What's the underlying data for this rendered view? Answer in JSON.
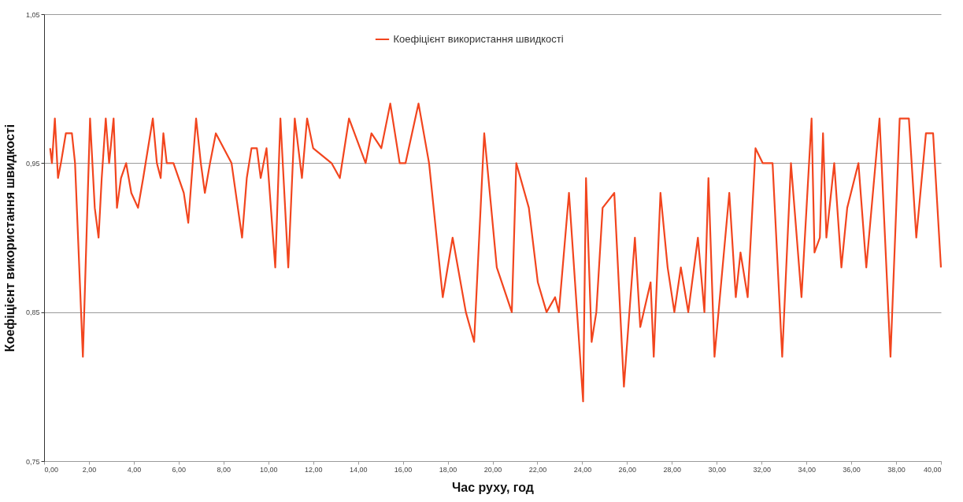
{
  "chart_data": {
    "type": "line",
    "xlabel": "Час руху, год",
    "ylabel": "Коефіцієнт використання швидкості",
    "x": [
      0.27,
      0.35,
      0.48,
      0.62,
      0.75,
      0.97,
      1.24,
      1.38,
      1.73,
      2.05,
      2.26,
      2.43,
      2.57,
      2.75,
      2.9,
      3.1,
      3.25,
      3.43,
      3.66,
      3.89,
      4.19,
      4.42,
      4.85,
      5.03,
      5.2,
      5.32,
      5.47,
      5.77,
      6.23,
      6.43,
      6.78,
      6.99,
      7.17,
      7.4,
      7.66,
      8.36,
      8.83,
      9.04,
      9.25,
      9.49,
      9.66,
      9.92,
      10.31,
      10.54,
      10.89,
      11.18,
      11.5,
      11.73,
      12.0,
      12.82,
      13.19,
      13.6,
      14.34,
      14.6,
      15.04,
      15.44,
      15.86,
      16.12,
      16.7,
      17.17,
      17.78,
      18.22,
      18.81,
      19.18,
      19.63,
      20.19,
      20.86,
      21.06,
      21.62,
      22.02,
      22.41,
      22.79,
      22.96,
      23.41,
      24.04,
      24.17,
      24.42,
      24.63,
      24.91,
      25.43,
      25.86,
      26.35,
      26.59,
      27.05,
      27.19,
      27.49,
      27.81,
      28.11,
      28.4,
      28.73,
      29.16,
      29.45,
      29.63,
      29.9,
      30.56,
      30.85,
      31.06,
      31.38,
      31.73,
      32.05,
      32.49,
      32.92,
      33.31,
      33.78,
      34.23,
      34.36,
      34.6,
      34.74,
      34.89,
      35.24,
      35.56,
      35.82,
      36.32,
      36.67,
      37.26,
      37.75,
      38.16,
      38.57,
      38.9,
      39.33,
      39.65,
      40.0
    ],
    "series": [
      {
        "name": "Коефіцієнт використання швидкості",
        "color": "#f2451e",
        "values": [
          0.96,
          0.95,
          0.98,
          0.94,
          0.95,
          0.97,
          0.97,
          0.95,
          0.82,
          0.98,
          0.92,
          0.9,
          0.94,
          0.98,
          0.95,
          0.98,
          0.92,
          0.94,
          0.95,
          0.93,
          0.92,
          0.94,
          0.98,
          0.95,
          0.94,
          0.97,
          0.95,
          0.95,
          0.93,
          0.91,
          0.98,
          0.95,
          0.93,
          0.95,
          0.97,
          0.95,
          0.9,
          0.94,
          0.96,
          0.96,
          0.94,
          0.96,
          0.88,
          0.98,
          0.88,
          0.98,
          0.94,
          0.98,
          0.96,
          0.95,
          0.94,
          0.98,
          0.95,
          0.97,
          0.96,
          0.99,
          0.95,
          0.95,
          0.99,
          0.95,
          0.86,
          0.9,
          0.85,
          0.83,
          0.97,
          0.88,
          0.85,
          0.95,
          0.92,
          0.87,
          0.85,
          0.86,
          0.85,
          0.93,
          0.79,
          0.94,
          0.83,
          0.85,
          0.92,
          0.93,
          0.8,
          0.9,
          0.84,
          0.87,
          0.82,
          0.93,
          0.88,
          0.85,
          0.88,
          0.85,
          0.9,
          0.85,
          0.94,
          0.82,
          0.93,
          0.86,
          0.89,
          0.86,
          0.96,
          0.95,
          0.95,
          0.82,
          0.95,
          0.86,
          0.98,
          0.89,
          0.9,
          0.97,
          0.9,
          0.95,
          0.88,
          0.92,
          0.95,
          0.88,
          0.98,
          0.82,
          0.98,
          0.98,
          0.9,
          0.97,
          0.97,
          0.88
        ]
      }
    ],
    "xlim": [
      0,
      40
    ],
    "xticks": [
      {
        "value": 0,
        "label": "0,00"
      },
      {
        "value": 2,
        "label": "2,00"
      },
      {
        "value": 4,
        "label": "4,00"
      },
      {
        "value": 6,
        "label": "6,00"
      },
      {
        "value": 8,
        "label": "8,00"
      },
      {
        "value": 10,
        "label": "10,00"
      },
      {
        "value": 12,
        "label": "12,00"
      },
      {
        "value": 14,
        "label": "14,00"
      },
      {
        "value": 16,
        "label": "16,00"
      },
      {
        "value": 18,
        "label": "18,00"
      },
      {
        "value": 20,
        "label": "20,00"
      },
      {
        "value": 22,
        "label": "22,00"
      },
      {
        "value": 24,
        "label": "24,00"
      },
      {
        "value": 26,
        "label": "26,00"
      },
      {
        "value": 28,
        "label": "28,00"
      },
      {
        "value": 30,
        "label": "30,00"
      },
      {
        "value": 32,
        "label": "32,00"
      },
      {
        "value": 34,
        "label": "34,00"
      },
      {
        "value": 36,
        "label": "36,00"
      },
      {
        "value": 38,
        "label": "38,00"
      },
      {
        "value": 40,
        "label": "40,00"
      }
    ],
    "ylim": [
      0.75,
      1.05
    ],
    "yticks": [
      {
        "value": 0.75,
        "label": "0,75"
      },
      {
        "value": 0.85,
        "label": "0,85"
      },
      {
        "value": 0.95,
        "label": "0,95"
      },
      {
        "value": 1.05,
        "label": "1,05"
      }
    ],
    "grid": "y",
    "legend": "top"
  }
}
